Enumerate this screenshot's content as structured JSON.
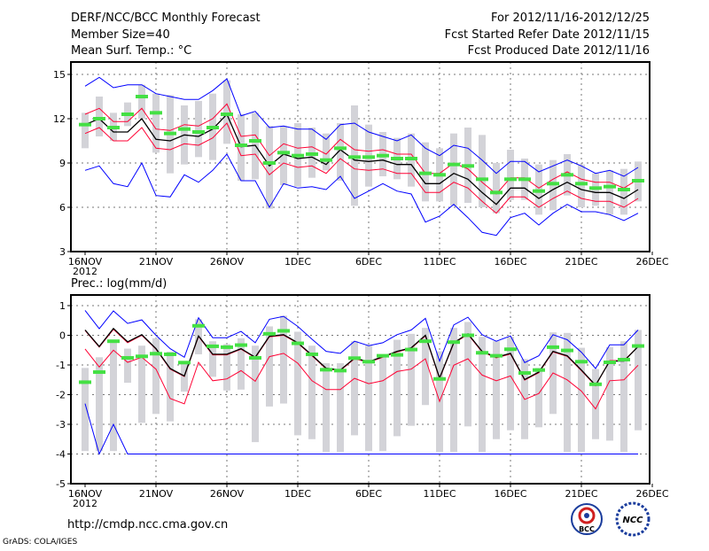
{
  "header": {
    "title": "DERF/NCC/BCC Monthly Forecast",
    "member_size": "Member Size=40",
    "variable": "Mean Surf. Temp.: °C",
    "period": "For 2012/11/16-2012/12/25",
    "started": "Fcst Started Refer Date 2012/11/15",
    "produced": "Fcst Produced Date 2012/11/16"
  },
  "footer": {
    "url": "http://cmdp.ncc.cma.gov.cn",
    "credit": "GrADS: COLA/IGES",
    "logo_bcc": "BCC",
    "logo_ncc": "NCC"
  },
  "colors": {
    "max_min": "#0000ff",
    "spread": "#ff0033",
    "mean": "#000000",
    "marker": "#44e044",
    "bar": "#d3d3d8"
  },
  "chart_data": [
    {
      "type": "line",
      "title": "Mean Surf. Temp.: °C",
      "ylim": [
        3,
        15
      ],
      "yticks": [
        "3",
        "6",
        "9",
        "12",
        "15"
      ],
      "ytick_values": [
        3,
        6,
        9,
        12,
        15
      ],
      "xtick_labels": [
        "16NOV",
        "21NOV",
        "26NOV",
        "1DEC",
        "6DEC",
        "11DEC",
        "16DEC",
        "21DEC",
        "26DEC"
      ],
      "xtick_days": [
        0,
        5,
        10,
        15,
        20,
        25,
        30,
        35,
        40
      ],
      "year_label": "2012",
      "grid": true,
      "series": [
        {
          "name": "max",
          "color": "blue",
          "values": [
            14.2,
            14.8,
            14.1,
            14.3,
            14.3,
            13.7,
            13.5,
            13.3,
            13.3,
            13.9,
            14.7,
            12.2,
            12.5,
            11.4,
            11.5,
            11.3,
            11.3,
            10.6,
            11.6,
            11.7,
            11.1,
            10.8,
            10.5,
            10.9,
            10.0,
            9.5,
            10.2,
            10.0,
            9.2,
            8.3,
            9.1,
            9.1,
            8.4,
            8.8,
            9.2,
            8.8,
            8.3,
            8.5,
            8.1,
            8.7
          ]
        },
        {
          "name": "min",
          "color": "blue",
          "values": [
            8.5,
            8.8,
            7.6,
            7.4,
            9.0,
            6.8,
            6.7,
            8.2,
            7.7,
            8.5,
            9.6,
            7.8,
            7.8,
            6.0,
            7.6,
            7.3,
            7.4,
            7.2,
            8.1,
            6.6,
            7.1,
            7.6,
            7.1,
            6.9,
            5.0,
            5.4,
            6.2,
            5.3,
            4.3,
            4.1,
            5.3,
            5.6,
            4.8,
            5.6,
            6.2,
            5.7,
            5.7,
            5.5,
            5.1,
            5.6
          ]
        },
        {
          "name": "upper",
          "color": "red",
          "values": [
            12.3,
            12.7,
            11.8,
            11.8,
            12.7,
            11.3,
            11.2,
            11.6,
            11.5,
            12.0,
            13.0,
            10.8,
            10.9,
            9.5,
            10.3,
            10.0,
            10.1,
            9.6,
            10.6,
            9.9,
            9.8,
            9.9,
            9.6,
            9.6,
            8.3,
            8.3,
            9.0,
            8.6,
            7.7,
            6.9,
            8.0,
            8.0,
            7.3,
            7.9,
            8.4,
            7.9,
            7.7,
            7.7,
            7.3,
            7.9
          ]
        },
        {
          "name": "lower",
          "color": "red",
          "values": [
            11.0,
            11.4,
            10.5,
            10.5,
            11.4,
            10.0,
            9.9,
            10.3,
            10.2,
            10.7,
            11.7,
            9.5,
            9.6,
            8.2,
            9.0,
            8.7,
            8.8,
            8.3,
            9.3,
            8.6,
            8.5,
            8.6,
            8.3,
            8.3,
            7.0,
            7.0,
            7.7,
            7.3,
            6.4,
            5.6,
            6.7,
            6.7,
            6.0,
            6.6,
            7.1,
            6.6,
            6.4,
            6.4,
            6.0,
            6.6
          ]
        },
        {
          "name": "mean",
          "color": "black",
          "values": [
            11.6,
            12.0,
            11.1,
            11.1,
            12.0,
            10.6,
            10.5,
            10.9,
            10.8,
            11.3,
            12.3,
            10.1,
            10.2,
            8.8,
            9.6,
            9.3,
            9.4,
            8.9,
            9.9,
            9.2,
            9.1,
            9.2,
            8.9,
            8.9,
            7.6,
            7.6,
            8.3,
            7.9,
            7.0,
            6.2,
            7.3,
            7.3,
            6.6,
            7.2,
            7.7,
            7.2,
            7.0,
            7.0,
            6.6,
            7.2
          ]
        },
        {
          "name": "marker",
          "color": "green",
          "values": [
            11.6,
            12.0,
            11.4,
            12.3,
            13.5,
            12.4,
            11.0,
            11.3,
            11.1,
            11.4,
            12.3,
            10.2,
            10.5,
            9.0,
            9.7,
            9.5,
            9.6,
            9.2,
            10.0,
            9.4,
            9.4,
            9.5,
            9.3,
            9.3,
            8.3,
            8.2,
            8.9,
            8.8,
            7.9,
            7.0,
            7.9,
            7.9,
            7.1,
            7.6,
            8.2,
            7.6,
            7.3,
            7.4,
            7.2,
            7.8
          ]
        }
      ],
      "ranges": [
        [
          10.0,
          12.4
        ],
        [
          10.8,
          13.5
        ],
        [
          10.5,
          12.4
        ],
        [
          11.5,
          13.1
        ],
        [
          12.0,
          14.3
        ],
        [
          9.7,
          13.7
        ],
        [
          8.3,
          13.6
        ],
        [
          8.9,
          12.9
        ],
        [
          9.4,
          13.2
        ],
        [
          9.2,
          13.7
        ],
        [
          10.3,
          14.6
        ],
        [
          7.8,
          12.3
        ],
        [
          7.9,
          12.4
        ],
        [
          5.9,
          11.5
        ],
        [
          7.5,
          11.5
        ],
        [
          7.4,
          11.7
        ],
        [
          8.0,
          11.4
        ],
        [
          8.5,
          11.0
        ],
        [
          7.8,
          11.7
        ],
        [
          6.1,
          12.9
        ],
        [
          7.4,
          11.6
        ],
        [
          8.1,
          11.1
        ],
        [
          7.9,
          10.7
        ],
        [
          7.4,
          11.0
        ],
        [
          6.4,
          10.4
        ],
        [
          6.4,
          10.0
        ],
        [
          6.1,
          11.0
        ],
        [
          6.3,
          11.4
        ],
        [
          6.0,
          10.9
        ],
        [
          5.6,
          9.0
        ],
        [
          6.5,
          9.9
        ],
        [
          6.5,
          9.3
        ],
        [
          5.5,
          8.9
        ],
        [
          5.8,
          9.2
        ],
        [
          6.8,
          9.6
        ],
        [
          6.0,
          8.9
        ],
        [
          6.1,
          8.3
        ],
        [
          5.5,
          8.5
        ],
        [
          5.5,
          8.6
        ],
        [
          6.4,
          9.1
        ]
      ]
    },
    {
      "type": "line",
      "title": "Prec.: log(mm/d)",
      "ylim": [
        -5,
        1
      ],
      "yticks": [
        "-5",
        "-4",
        "-3",
        "-2",
        "-1",
        "0",
        "1"
      ],
      "ytick_values": [
        -5,
        -4,
        -3,
        -2,
        -1,
        0,
        1
      ],
      "xtick_labels": [
        "16NOV",
        "21NOV",
        "26NOV",
        "1DEC",
        "6DEC",
        "11DEC",
        "16DEC",
        "21DEC",
        "26DEC"
      ],
      "xtick_days": [
        0,
        5,
        10,
        15,
        20,
        25,
        30,
        35,
        40
      ],
      "year_label": "2012",
      "grid": true,
      "series": [
        {
          "name": "max",
          "color": "blue",
          "values": [
            0.84,
            0.22,
            0.82,
            0.4,
            0.52,
            0,
            -0.45,
            -0.74,
            0.59,
            -0.08,
            -0.08,
            0.13,
            -0.25,
            0.54,
            0.64,
            0.3,
            -0.13,
            -0.54,
            -0.61,
            -0.2,
            -0.35,
            -0.25,
            0.02,
            0.18,
            0.57,
            -0.87,
            0.35,
            0.61,
            0.02,
            -0.2,
            -0.02,
            -0.92,
            -0.69,
            0.02,
            -0.15,
            -0.57,
            -1.12,
            -0.32,
            -0.32,
            0.18
          ]
        },
        {
          "name": "min",
          "color": "blue",
          "values": [
            -2.3,
            -4,
            -3.0,
            -4,
            -4,
            -4,
            -4,
            -4,
            -4,
            -4,
            -4,
            -4,
            -4,
            -4,
            -4,
            -4,
            -4,
            -4,
            -4,
            -4,
            -4,
            -4,
            -4,
            -4,
            -4,
            -4,
            -4,
            -4,
            -4,
            -4,
            -4,
            -4,
            -4,
            -4,
            -4,
            -4,
            -4,
            -4,
            -4,
            -4
          ]
        },
        {
          "name": "upper",
          "color": "red",
          "values": [
            0.16,
            -0.4,
            0.2,
            -0.25,
            0.0,
            -0.47,
            -1.14,
            -1.39,
            -0.04,
            -0.66,
            -0.66,
            -0.47,
            -0.76,
            -0.05,
            0.0,
            -0.27,
            -0.69,
            -1.13,
            -1.19,
            -0.79,
            -0.91,
            -0.74,
            -0.56,
            -0.44,
            -0.02,
            -1.46,
            -0.27,
            0.03,
            -0.56,
            -0.76,
            -0.63,
            -1.51,
            -1.26,
            -0.56,
            -0.71,
            -1.19,
            -1.7,
            -0.85,
            -0.85,
            -0.38
          ]
        },
        {
          "name": "lower",
          "color": "red",
          "values": [
            -0.46,
            -1.07,
            -0.5,
            -0.91,
            -0.74,
            -1.14,
            -2.13,
            -2.31,
            -0.91,
            -1.53,
            -1.47,
            -1.19,
            -1.55,
            -0.72,
            -0.61,
            -0.94,
            -1.53,
            -1.83,
            -1.83,
            -1.45,
            -1.63,
            -1.53,
            -1.22,
            -1.14,
            -0.79,
            -2.23,
            -1.01,
            -0.79,
            -1.34,
            -1.53,
            -1.37,
            -2.16,
            -1.96,
            -1.27,
            -1.5,
            -1.88,
            -2.48,
            -1.53,
            -1.5,
            -1.01
          ]
        },
        {
          "name": "mean",
          "color": "black",
          "values": [
            0.18,
            -0.38,
            0.23,
            -0.22,
            0.02,
            -0.45,
            -1.12,
            -1.37,
            -0.02,
            -0.64,
            -0.64,
            -0.45,
            -0.74,
            -0.03,
            0.02,
            -0.25,
            -0.67,
            -1.11,
            -1.17,
            -0.77,
            -0.89,
            -0.72,
            -0.54,
            -0.42,
            0.0,
            -1.44,
            -0.25,
            0.05,
            -0.54,
            -0.74,
            -0.61,
            -1.49,
            -1.24,
            -0.54,
            -0.69,
            -1.17,
            -1.68,
            -0.87,
            -0.87,
            -0.38
          ]
        },
        {
          "name": "marker",
          "color": "green",
          "values": [
            -1.58,
            -1.24,
            -0.2,
            -0.76,
            -0.71,
            -0.62,
            -0.64,
            -0.92,
            0.32,
            -0.37,
            -0.4,
            -0.33,
            -0.76,
            0.05,
            0.15,
            -0.27,
            -0.64,
            -1.16,
            -1.19,
            -0.77,
            -0.89,
            -0.69,
            -0.66,
            -0.48,
            -0.2,
            -1.47,
            -0.23,
            0.0,
            -0.59,
            -0.69,
            -0.47,
            -1.27,
            -1.17,
            -0.4,
            -0.51,
            -0.89,
            -1.65,
            -0.91,
            -0.82,
            -0.36
          ]
        }
      ],
      "ranges": [
        [
          -3.9,
          -1.1
        ],
        [
          -3.9,
          -0.74
        ],
        [
          -3.9,
          -0.2
        ],
        [
          -1.6,
          -0.45
        ],
        [
          -2.95,
          -0.35
        ],
        [
          -2.65,
          -0.1
        ],
        [
          -2.9,
          -0.55
        ],
        [
          -1.9,
          -0.87
        ],
        [
          -0.64,
          0.54
        ],
        [
          -1.4,
          -0.2
        ],
        [
          -1.86,
          -0.3
        ],
        [
          -1.83,
          -0.1
        ],
        [
          -3.6,
          -0.35
        ],
        [
          -2.4,
          0.3
        ],
        [
          -2.3,
          0.66
        ],
        [
          -3.37,
          0.12
        ],
        [
          -3.5,
          -0.35
        ],
        [
          -3.93,
          -0.94
        ],
        [
          -3.93,
          -0.94
        ],
        [
          -3.37,
          -0.2
        ],
        [
          -3.9,
          -0.35
        ],
        [
          -3.9,
          -0.64
        ],
        [
          -3.4,
          -0.15
        ],
        [
          -3.05,
          0.05
        ],
        [
          -2.35,
          0.25
        ],
        [
          -3.93,
          -0.54
        ],
        [
          -3.93,
          0.25
        ],
        [
          -3.07,
          0.45
        ],
        [
          -3.93,
          -0.05
        ],
        [
          -3.5,
          -0.2
        ],
        [
          -3.2,
          -0.05
        ],
        [
          -3.5,
          -0.8
        ],
        [
          -3.1,
          -1.1
        ],
        [
          -2.65,
          0.1
        ],
        [
          -3.93,
          0.08
        ],
        [
          -3.93,
          -0.42
        ],
        [
          -3.5,
          -1.14
        ],
        [
          -3.55,
          -0.4
        ],
        [
          -3.93,
          -0.2
        ],
        [
          -3.2,
          0.18
        ]
      ]
    }
  ]
}
